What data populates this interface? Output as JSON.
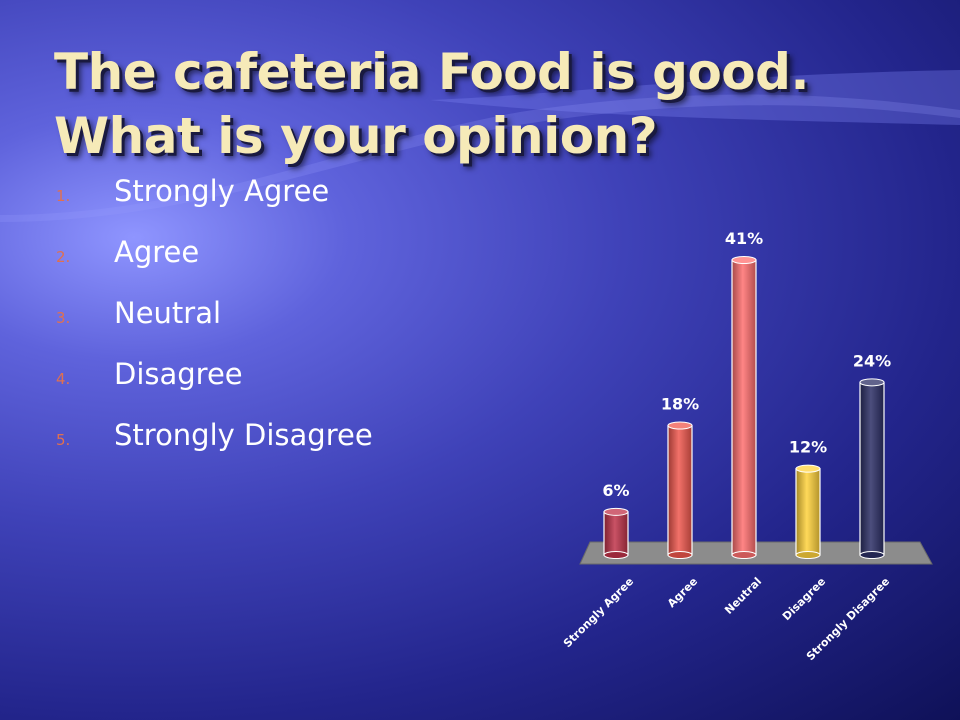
{
  "slide": {
    "title_line1": "The cafeteria Food is good.",
    "title_line2": "What is your opinion?",
    "options": [
      {
        "number": "1.",
        "label": "Strongly Agree"
      },
      {
        "number": "2.",
        "label": "Agree"
      },
      {
        "number": "3.",
        "label": "Neutral"
      },
      {
        "number": "4.",
        "label": "Disagree"
      },
      {
        "number": "5.",
        "label": "Strongly Disagree"
      }
    ]
  },
  "chart_data": {
    "type": "bar",
    "categories": [
      "Strongly Agree",
      "Agree",
      "Neutral",
      "Disagree",
      "Strongly Disagree"
    ],
    "values": [
      6,
      18,
      41,
      12,
      24
    ],
    "data_labels": [
      "6%",
      "18%",
      "41%",
      "12%",
      "24%"
    ],
    "unit": "%",
    "colors": [
      "#c0334a",
      "#f0584e",
      "#ff7070",
      "#ffd23c",
      "#2c2f66"
    ],
    "ylim": [
      0,
      41
    ],
    "grid": false,
    "legend": "none"
  }
}
